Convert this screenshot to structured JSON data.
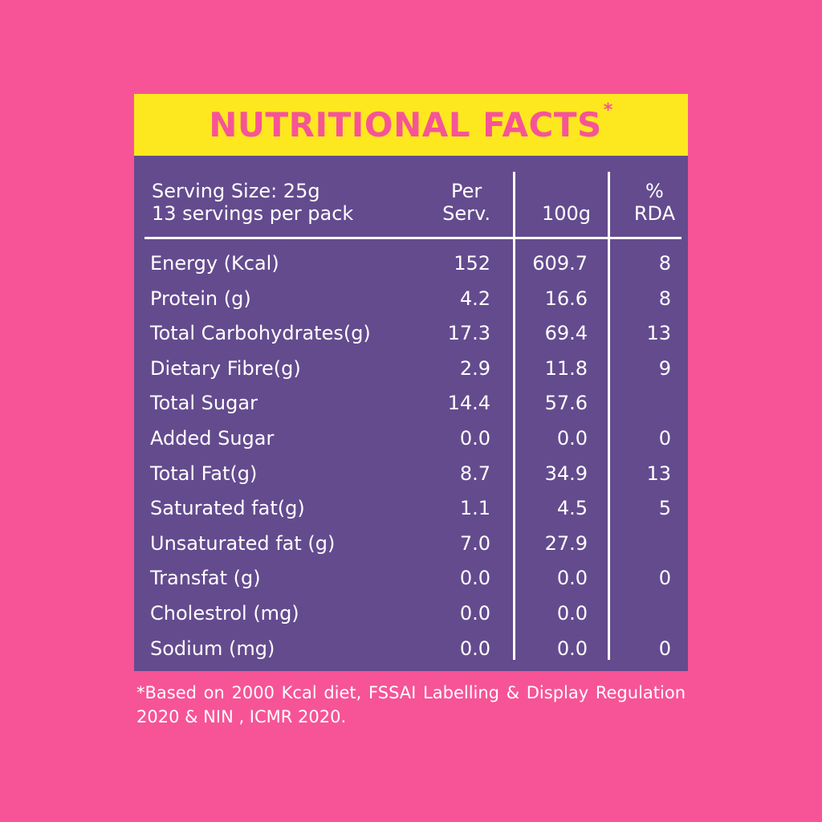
{
  "title": "NUTRITIONAL FACTS",
  "title_mark": "*",
  "header": {
    "serving_size": "Serving Size: 25g",
    "servings_per_pack": "13 servings per pack",
    "per_serv_line1": "Per",
    "per_serv_line2": "Serv.",
    "per_100g": "100g",
    "rda_line1": "%",
    "rda_line2": "RDA"
  },
  "rows": [
    {
      "name": "Energy (Kcal)",
      "per_serv": "152",
      "per_100g": "609.7",
      "rda": "8"
    },
    {
      "name": "Protein (g)",
      "per_serv": "4.2",
      "per_100g": "16.6",
      "rda": "8"
    },
    {
      "name": "Total Carbohydrates(g)",
      "per_serv": "17.3",
      "per_100g": "69.4",
      "rda": "13"
    },
    {
      "name": "Dietary Fibre(g)",
      "per_serv": "2.9",
      "per_100g": "11.8",
      "rda": "9"
    },
    {
      "name": "Total Sugar",
      "per_serv": "14.4",
      "per_100g": "57.6",
      "rda": ""
    },
    {
      "name": "Added Sugar",
      "per_serv": "0.0",
      "per_100g": "0.0",
      "rda": "0"
    },
    {
      "name": "Total Fat(g)",
      "per_serv": "8.7",
      "per_100g": "34.9",
      "rda": "13"
    },
    {
      "name": "Saturated fat(g)",
      "per_serv": "1.1",
      "per_100g": "4.5",
      "rda": "5"
    },
    {
      "name": "Unsaturated fat (g)",
      "per_serv": "7.0",
      "per_100g": "27.9",
      "rda": ""
    },
    {
      "name": "Transfat (g)",
      "per_serv": "0.0",
      "per_100g": "0.0",
      "rda": "0"
    },
    {
      "name": "Cholestrol (mg)",
      "per_serv": "0.0",
      "per_100g": "0.0",
      "rda": ""
    },
    {
      "name": "Sodium (mg)",
      "per_serv": "0.0",
      "per_100g": "0.0",
      "rda": "0"
    }
  ],
  "footnote": "*Based on 2000 Kcal diet, FSSAI Labelling & Display Regulation 2020 & NIN , ICMR 2020.",
  "colors": {
    "background": "#f65497",
    "title_bar": "#fde81f",
    "panel": "#644b8e",
    "text": "#ffffff"
  }
}
